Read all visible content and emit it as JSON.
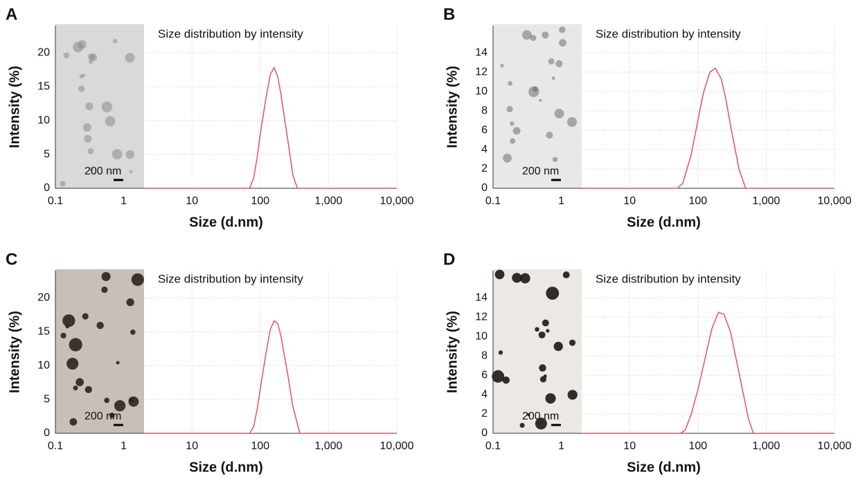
{
  "chart_data": [
    {
      "panel": "A",
      "type": "line",
      "title": "Size distribution by intensity",
      "xlabel": "Size (d.nm)",
      "ylabel": "Intensity (%)",
      "inset_label": "200 nm",
      "log_x": true,
      "grid": true,
      "x": [
        2,
        10,
        70,
        80,
        90,
        100,
        120,
        140,
        160,
        180,
        200,
        250,
        300,
        350,
        1000,
        10000
      ],
      "series": [
        {
          "color": "#e8505b",
          "values": [
            0,
            0,
            0,
            1.5,
            4.5,
            8,
            13,
            16.8,
            17.8,
            16.5,
            14,
            7.5,
            2,
            0,
            0,
            0
          ]
        }
      ],
      "xlim": [
        0.1,
        10000
      ],
      "xticks": [
        0.1,
        1,
        10,
        100,
        {
          "value": 1000,
          "label": "1,000"
        },
        {
          "value": 10000,
          "label": "10,000"
        }
      ],
      "ylim": [
        0,
        24
      ],
      "yticks": [
        0,
        5,
        10,
        15,
        20
      ]
    },
    {
      "panel": "B",
      "type": "line",
      "title": "Size distribution by intensity",
      "xlabel": "Size (d.nm)",
      "ylabel": "Intensity (%)",
      "inset_label": "200 nm",
      "log_x": true,
      "grid": true,
      "x": [
        2,
        10,
        50,
        60,
        80,
        100,
        120,
        150,
        180,
        220,
        260,
        300,
        400,
        500,
        1000,
        10000
      ],
      "series": [
        {
          "color": "#e8505b",
          "values": [
            0,
            0,
            0,
            0.5,
            3.5,
            7,
            9.8,
            12,
            12.4,
            11.3,
            9,
            6.5,
            2,
            0,
            0,
            0
          ]
        }
      ],
      "xlim": [
        0.1,
        10000
      ],
      "xticks": [
        0.1,
        1,
        10,
        100,
        {
          "value": 1000,
          "label": "1,000"
        },
        {
          "value": 10000,
          "label": "10,000"
        }
      ],
      "ylim": [
        0,
        16.8
      ],
      "yticks": [
        0,
        2,
        4,
        6,
        8,
        10,
        12,
        14
      ]
    },
    {
      "panel": "C",
      "type": "line",
      "title": "Size distribution by intensity",
      "xlabel": "Size (d.nm)",
      "ylabel": "Intensity (%)",
      "inset_label": "200 nm",
      "log_x": true,
      "grid": true,
      "x": [
        2,
        10,
        70,
        80,
        90,
        100,
        120,
        140,
        160,
        180,
        200,
        250,
        300,
        380,
        1000,
        10000
      ],
      "series": [
        {
          "color": "#e8505b",
          "values": [
            0,
            0,
            0,
            1,
            3.5,
            6.5,
            11.5,
            15.3,
            16.6,
            16.2,
            14.5,
            9,
            4,
            0,
            0,
            0
          ]
        }
      ],
      "xlim": [
        0.1,
        10000
      ],
      "xticks": [
        0.1,
        1,
        10,
        100,
        {
          "value": 1000,
          "label": "1,000"
        },
        {
          "value": 10000,
          "label": "10,000"
        }
      ],
      "ylim": [
        0,
        24
      ],
      "yticks": [
        0,
        5,
        10,
        15,
        20
      ]
    },
    {
      "panel": "D",
      "type": "line",
      "title": "Size distribution by intensity",
      "xlabel": "Size (d.nm)",
      "ylabel": "Intensity (%)",
      "inset_label": "200 nm",
      "log_x": true,
      "grid": true,
      "x": [
        2,
        10,
        55,
        65,
        80,
        100,
        130,
        160,
        200,
        240,
        300,
        380,
        450,
        550,
        650,
        1000,
        10000
      ],
      "series": [
        {
          "color": "#e8505b",
          "values": [
            0,
            0,
            0,
            0.3,
            2,
            4.5,
            8,
            10.8,
            12.5,
            12.3,
            10.5,
            7,
            4.5,
            1.5,
            0,
            0,
            0
          ]
        }
      ],
      "xlim": [
        0.1,
        10000
      ],
      "xticks": [
        0.1,
        1,
        10,
        100,
        {
          "value": 1000,
          "label": "1,000"
        },
        {
          "value": 10000,
          "label": "10,000"
        }
      ],
      "ylim": [
        0,
        16.8
      ],
      "yticks": [
        0,
        2,
        4,
        6,
        8,
        10,
        12,
        14
      ]
    }
  ]
}
